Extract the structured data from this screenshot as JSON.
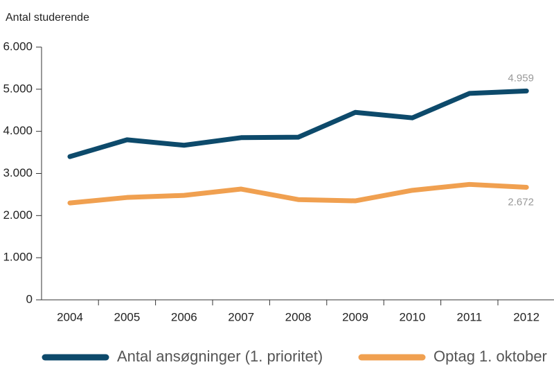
{
  "chart_data": {
    "type": "line",
    "y_label": "Antal studerende",
    "categories": [
      "2004",
      "2005",
      "2006",
      "2007",
      "2008",
      "2009",
      "2010",
      "2011",
      "2012"
    ],
    "series": [
      {
        "name": "Antal ansøgninger (1. prioritet)",
        "color": "#0d4a6b",
        "values": [
          3400,
          3800,
          3670,
          3850,
          3860,
          4450,
          4320,
          4900,
          4959
        ],
        "value_labels": [
          null,
          null,
          null,
          null,
          null,
          null,
          null,
          null,
          "4.959"
        ]
      },
      {
        "name": "Optag 1. oktober",
        "color": "#f0a050",
        "values": [
          2300,
          2430,
          2480,
          2630,
          2380,
          2350,
          2600,
          2740,
          2672
        ],
        "value_labels": [
          null,
          null,
          null,
          null,
          null,
          null,
          null,
          null,
          "2.672"
        ]
      }
    ],
    "ylim": [
      0,
      6000
    ],
    "yticks": [
      0,
      {
        "value": 1000,
        "label": "1.000"
      },
      {
        "value": 2000,
        "label": "2.000"
      },
      {
        "value": 3000,
        "label": "3.000"
      },
      {
        "value": 4000,
        "label": "4.000"
      },
      {
        "value": 5000,
        "label": "5.000"
      },
      {
        "value": 6000,
        "label": "6.000"
      }
    ]
  }
}
